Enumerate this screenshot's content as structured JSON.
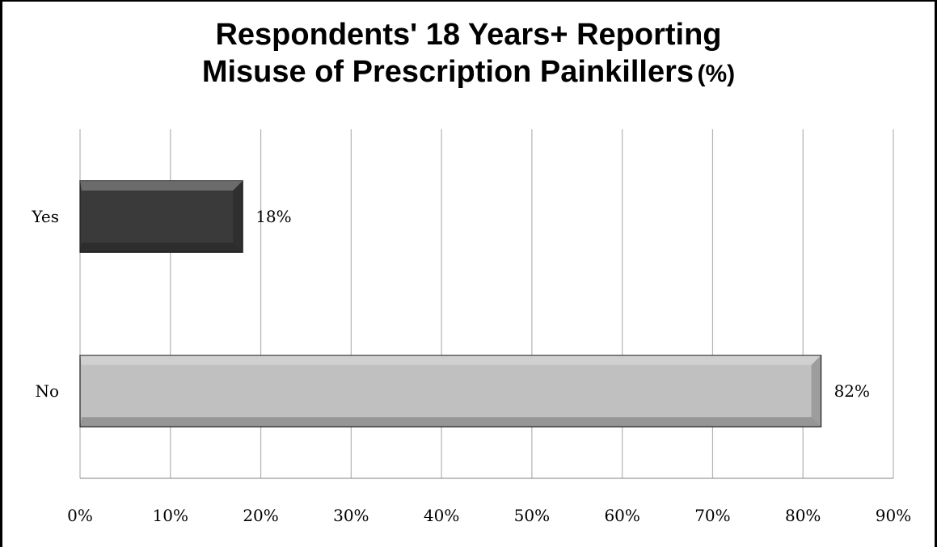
{
  "chart_data": {
    "type": "bar",
    "orientation": "horizontal",
    "title_main": "Respondents' 18 Years+ Reporting",
    "title_line2": "Misuse of Prescription Painkillers",
    "title_unit": "(%)",
    "categories": [
      "Yes",
      "No"
    ],
    "values": [
      18,
      82
    ],
    "data_labels": [
      "18%",
      "82%"
    ],
    "bar_colors": [
      "#3a3a3a",
      "#c0c0c0"
    ],
    "xlim": [
      0,
      90
    ],
    "xticks": [
      "0%",
      "10%",
      "20%",
      "30%",
      "40%",
      "50%",
      "60%",
      "70%",
      "80%",
      "90%"
    ],
    "grid": true,
    "legend": "none"
  }
}
